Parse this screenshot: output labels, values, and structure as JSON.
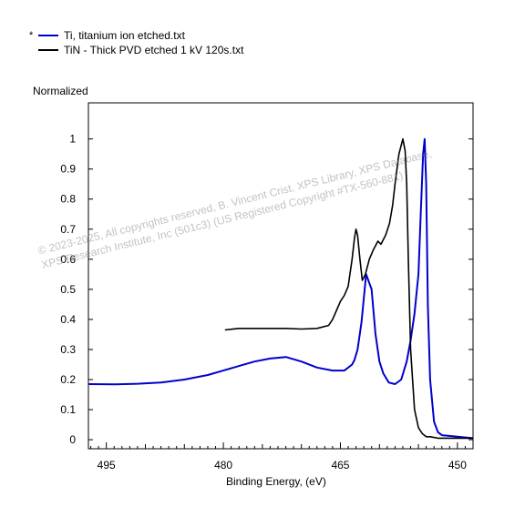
{
  "legend": {
    "marker": "*",
    "items": [
      {
        "label": "Ti, titanium ion etched.txt",
        "color": "#0000cc"
      },
      {
        "label": "TiN - Thick PVD etched 1 kV 120s.txt",
        "color": "#000000"
      }
    ]
  },
  "watermark": {
    "line1": "© 2023-2025,  All copyrights reserved,   B. Vincent Crist,  XPS Library,  XPS Database,",
    "line2": "XPS Research Institute, Inc (501c3)   (US Registered Copyright  #TX-560-881)"
  },
  "chart_data": {
    "type": "line",
    "ylabel": "Normalized",
    "xlabel": "Binding Energy, (eV)",
    "xlim": [
      497.3,
      448.0
    ],
    "ylim": [
      -0.03,
      1.12
    ],
    "xticks": [
      495,
      480,
      465,
      450
    ],
    "yticks": [
      0,
      0.1,
      0.2,
      0.3,
      0.4,
      0.5,
      0.6,
      0.7,
      0.8,
      0.9,
      1
    ],
    "ytick_labels": [
      "0",
      "0.1",
      "0.2",
      "0.3",
      "0.4",
      "0.5",
      "0.6",
      "0.7",
      "0.8",
      "0.9",
      "1"
    ],
    "series": [
      {
        "name": "Ti, titanium ion etched.txt",
        "color": "#0000cc",
        "x": [
          497.3,
          494,
          491,
          488,
          485,
          482,
          480,
          478,
          476,
          474,
          472,
          470,
          468,
          466,
          464.5,
          463.5,
          463.2,
          462.8,
          462.3,
          461.7,
          461.0,
          460.5,
          460.0,
          459.5,
          458.8,
          458.0,
          457.2,
          456.5,
          456.0,
          455.5,
          455.0,
          454.7,
          454.4,
          454.2,
          454.0,
          453.8,
          453.5,
          453.0,
          452.5,
          452.0,
          450.0,
          448.0
        ],
        "y": [
          0.185,
          0.184,
          0.186,
          0.19,
          0.2,
          0.215,
          0.23,
          0.245,
          0.26,
          0.27,
          0.275,
          0.26,
          0.24,
          0.23,
          0.23,
          0.25,
          0.265,
          0.3,
          0.39,
          0.55,
          0.5,
          0.35,
          0.26,
          0.22,
          0.19,
          0.185,
          0.2,
          0.26,
          0.33,
          0.42,
          0.55,
          0.75,
          0.95,
          1.0,
          0.85,
          0.45,
          0.2,
          0.06,
          0.025,
          0.015,
          0.01,
          0.005
        ]
      },
      {
        "name": "TiN - Thick PVD etched 1 kV 120s.txt",
        "color": "#000000",
        "x": [
          479.8,
          478,
          476,
          474,
          472,
          470,
          468,
          466.5,
          466,
          465.5,
          465,
          464.5,
          464,
          463.5,
          463.2,
          463.0,
          462.8,
          462.5,
          462.2,
          461.8,
          461.3,
          460.8,
          460.2,
          459.8,
          459.2,
          458.7,
          458.3,
          458.0,
          457.5,
          457.0,
          456.7,
          456.5,
          456.3,
          456.0,
          455.5,
          455.0,
          454.5,
          454.0,
          453.5,
          452.5,
          451.0,
          448.0
        ],
        "y": [
          0.365,
          0.37,
          0.37,
          0.37,
          0.37,
          0.368,
          0.37,
          0.38,
          0.4,
          0.43,
          0.46,
          0.48,
          0.51,
          0.6,
          0.67,
          0.7,
          0.68,
          0.6,
          0.53,
          0.55,
          0.6,
          0.63,
          0.66,
          0.65,
          0.68,
          0.72,
          0.78,
          0.85,
          0.95,
          1.0,
          0.96,
          0.85,
          0.6,
          0.3,
          0.1,
          0.04,
          0.02,
          0.01,
          0.01,
          0.005,
          0.005,
          0.005
        ]
      }
    ]
  }
}
